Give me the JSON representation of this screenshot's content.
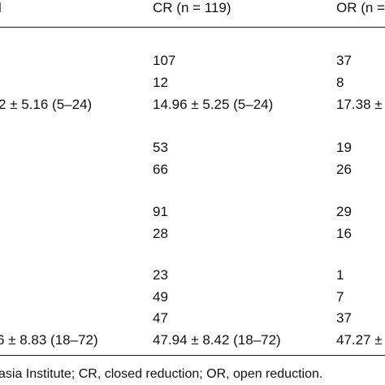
{
  "table": {
    "header": {
      "col1_fragment": "l",
      "col2": "CR (n = 119)",
      "col3_fragment": "OR (n ="
    },
    "rows": [
      {
        "col1": "",
        "col2": "107",
        "col3": "37"
      },
      {
        "col1": "",
        "col2": "12",
        "col3": "8"
      },
      {
        "col1": "2 ± 5.16 (5–24)",
        "col2": "14.96 ± 5.25 (5–24)",
        "col3": "17.38 ±"
      },
      {
        "col1": "",
        "col2": "53",
        "col3": "19"
      },
      {
        "col1": "",
        "col2": "66",
        "col3": "26"
      },
      {
        "col1": "",
        "col2": "91",
        "col3": "29"
      },
      {
        "col1": "",
        "col2": "28",
        "col3": "16"
      },
      {
        "col1": "",
        "col2": "23",
        "col3": "1"
      },
      {
        "col1": "",
        "col2": "49",
        "col3": "7"
      },
      {
        "col1": "",
        "col2": "47",
        "col3": "37"
      },
      {
        "col1": "6 ± 8.83 (18–72)",
        "col2": "47.94 ± 8.42 (18–72)",
        "col3": "47.27 ±"
      }
    ],
    "footnote": "asia Institute; CR, closed reduction; OR, open reduction."
  }
}
